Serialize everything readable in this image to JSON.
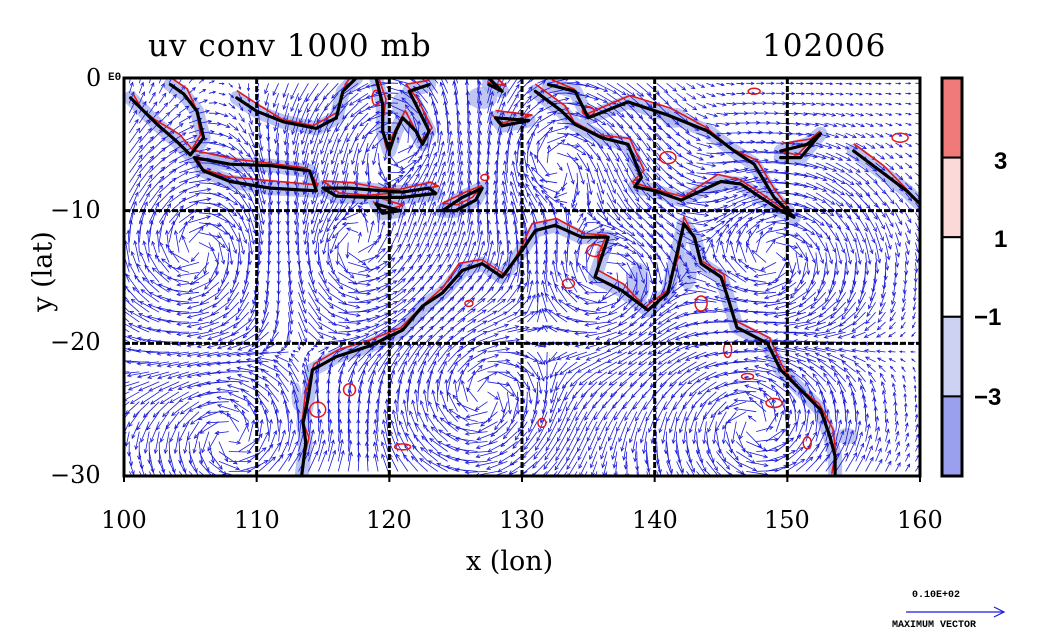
{
  "title": {
    "left": "uv conv 1000 mb",
    "right": "102006"
  },
  "axes": {
    "xlabel": "x (lon)",
    "ylabel": "y (lat)",
    "xlim": [
      100,
      160
    ],
    "ylim": [
      -30,
      0
    ],
    "xticks": [
      "100",
      "110",
      "120",
      "130",
      "140",
      "150",
      "160"
    ],
    "yticks": [
      "0",
      "−10",
      "−20",
      "−30"
    ],
    "y0_suffix": "E0",
    "grid_lon": [
      110,
      120,
      130,
      140,
      150
    ],
    "grid_lat": [
      -10,
      -20
    ]
  },
  "colorbar": {
    "labels": [
      "3",
      "1",
      "−1",
      "−3"
    ],
    "bands": [
      {
        "range": "> 3",
        "color": "#f07a7a"
      },
      {
        "range": "1 to 3",
        "color": "#fbd9d9"
      },
      {
        "range": "-1 to 1",
        "color": "#ffffff"
      },
      {
        "range": "-3 to -1",
        "color": "#cdd1f2"
      },
      {
        "range": "< -3",
        "color": "#9aa0ee"
      }
    ]
  },
  "vector_legend": {
    "magnitude": "0.10E+02",
    "label": "MAXIMUM VECTOR"
  },
  "colors": {
    "vector": "#1a1adc",
    "positive_contour": "#e01818",
    "negative_fill": "#a9b3ee",
    "coast": "#000000",
    "grid": "#000000"
  },
  "map": {
    "region": "Maritime Continent and Northern Australia",
    "coastlines": {
      "australia": [
        [
          113.4,
          -29.9
        ],
        [
          113.7,
          -27.5
        ],
        [
          113.5,
          -26.0
        ],
        [
          113.9,
          -24.0
        ],
        [
          114.2,
          -22.0
        ],
        [
          116.0,
          -21.0
        ],
        [
          118.5,
          -20.2
        ],
        [
          121.0,
          -19.0
        ],
        [
          122.5,
          -17.2
        ],
        [
          124.0,
          -16.2
        ],
        [
          125.5,
          -14.5
        ],
        [
          127.0,
          -14.0
        ],
        [
          128.5,
          -15.0
        ],
        [
          130.0,
          -13.0
        ],
        [
          131.0,
          -11.5
        ],
        [
          132.5,
          -11.1
        ],
        [
          134.5,
          -12.0
        ],
        [
          136.5,
          -12.0
        ],
        [
          136.0,
          -13.5
        ],
        [
          135.5,
          -15.0
        ],
        [
          137.5,
          -16.0
        ],
        [
          139.5,
          -17.5
        ],
        [
          141.0,
          -16.2
        ],
        [
          141.5,
          -14.0
        ],
        [
          142.2,
          -11.0
        ],
        [
          143.0,
          -12.0
        ],
        [
          143.5,
          -14.0
        ],
        [
          145.0,
          -15.0
        ],
        [
          145.5,
          -16.5
        ],
        [
          146.2,
          -18.8
        ],
        [
          148.5,
          -20.0
        ],
        [
          149.5,
          -22.0
        ],
        [
          151.0,
          -23.5
        ],
        [
          152.5,
          -25.0
        ],
        [
          153.2,
          -27.0
        ],
        [
          153.6,
          -28.5
        ],
        [
          153.6,
          -30.0
        ]
      ],
      "sumatra": [
        [
          103.5,
          -0.5
        ],
        [
          104.5,
          -1.2
        ],
        [
          105.5,
          -2.5
        ],
        [
          106.0,
          -4.5
        ],
        [
          105.0,
          -5.8
        ],
        [
          104.0,
          -4.8
        ],
        [
          102.5,
          -3.5
        ],
        [
          101.5,
          -2.5
        ],
        [
          100.5,
          -1.5
        ]
      ],
      "java": [
        [
          105.3,
          -6.0
        ],
        [
          108.0,
          -6.5
        ],
        [
          111.0,
          -6.6
        ],
        [
          114.0,
          -7.0
        ],
        [
          114.5,
          -8.5
        ],
        [
          111.0,
          -8.3
        ],
        [
          108.0,
          -7.8
        ],
        [
          106.0,
          -7.0
        ],
        [
          105.3,
          -6.0
        ]
      ],
      "lesser_sunda": [
        [
          115.0,
          -8.3
        ],
        [
          117.0,
          -8.3
        ],
        [
          119.5,
          -8.5
        ],
        [
          121.0,
          -8.6
        ],
        [
          123.0,
          -8.3
        ],
        [
          123.5,
          -8.7
        ],
        [
          121.0,
          -9.0
        ],
        [
          118.5,
          -9.0
        ],
        [
          116.0,
          -8.9
        ],
        [
          115.0,
          -8.3
        ]
      ],
      "timor": [
        [
          124.0,
          -10.0
        ],
        [
          125.5,
          -9.0
        ],
        [
          127.0,
          -8.3
        ],
        [
          126.5,
          -9.2
        ],
        [
          125.0,
          -10.0
        ],
        [
          124.0,
          -10.0
        ]
      ],
      "borneo": [
        [
          108.5,
          -1.5
        ],
        [
          110.0,
          -2.5
        ],
        [
          112.0,
          -3.3
        ],
        [
          114.5,
          -3.8
        ],
        [
          116.0,
          -3.0
        ],
        [
          116.5,
          -1.0
        ],
        [
          117.5,
          0.0
        ]
      ],
      "sulawesi": [
        [
          119.0,
          0.0
        ],
        [
          119.5,
          -2.0
        ],
        [
          119.5,
          -4.0
        ],
        [
          120.0,
          -5.5
        ],
        [
          120.5,
          -4.0
        ],
        [
          121.0,
          -3.0
        ],
        [
          122.0,
          -4.0
        ],
        [
          122.5,
          -5.0
        ],
        [
          123.0,
          -4.0
        ],
        [
          122.0,
          -2.0
        ],
        [
          121.5,
          -1.0
        ],
        [
          123.0,
          -0.5
        ]
      ],
      "new_guinea": [
        [
          131.0,
          -1.0
        ],
        [
          133.0,
          -2.5
        ],
        [
          134.0,
          -3.5
        ],
        [
          136.0,
          -4.5
        ],
        [
          138.0,
          -5.0
        ],
        [
          139.0,
          -7.5
        ],
        [
          138.5,
          -8.2
        ],
        [
          140.0,
          -8.5
        ],
        [
          142.0,
          -9.2
        ],
        [
          143.5,
          -8.5
        ],
        [
          145.0,
          -7.8
        ],
        [
          146.5,
          -8.0
        ],
        [
          148.0,
          -9.0
        ],
        [
          149.5,
          -10.0
        ],
        [
          150.5,
          -10.5
        ],
        [
          149.0,
          -9.0
        ],
        [
          147.5,
          -6.5
        ],
        [
          146.0,
          -5.5
        ],
        [
          144.0,
          -4.0
        ],
        [
          141.0,
          -2.8
        ],
        [
          138.0,
          -1.8
        ],
        [
          135.0,
          -3.0
        ],
        [
          134.0,
          -1.0
        ],
        [
          132.0,
          -0.5
        ]
      ],
      "new_britain": [
        [
          149.5,
          -5.5
        ],
        [
          151.5,
          -5.0
        ],
        [
          152.5,
          -4.2
        ],
        [
          151.0,
          -6.0
        ],
        [
          149.5,
          -6.0
        ]
      ],
      "solomons": [
        [
          155.0,
          -5.5
        ],
        [
          157.0,
          -7.0
        ],
        [
          159.0,
          -8.5
        ],
        [
          160.0,
          -9.5
        ]
      ],
      "halmahera": [
        [
          127.5,
          0.0
        ],
        [
          128.5,
          -1.0
        ],
        [
          127.5,
          -0.5
        ]
      ],
      "seram": [
        [
          128.0,
          -3.0
        ],
        [
          130.5,
          -3.2
        ],
        [
          128.5,
          -3.6
        ],
        [
          128.0,
          -3.0
        ]
      ],
      "sumba": [
        [
          119.0,
          -9.5
        ],
        [
          120.8,
          -10.0
        ],
        [
          119.5,
          -10.2
        ],
        [
          119.0,
          -9.5
        ]
      ]
    }
  }
}
